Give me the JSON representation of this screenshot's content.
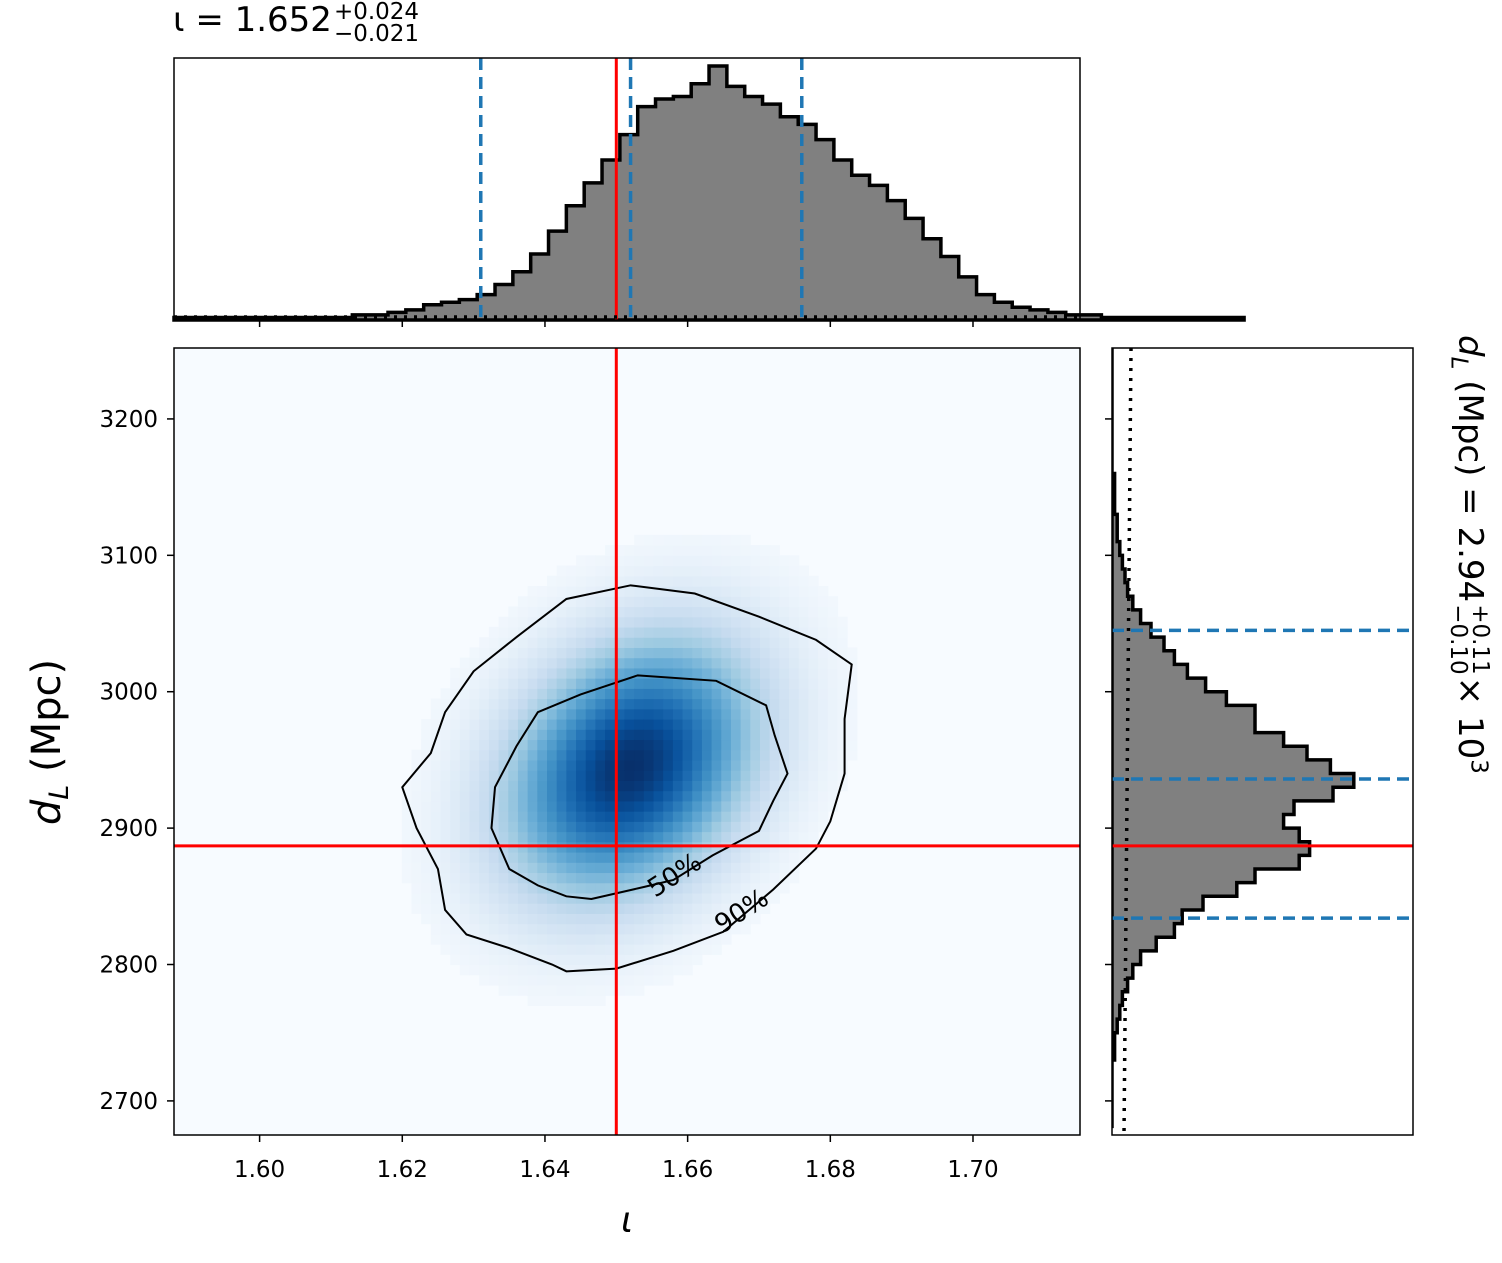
{
  "chart_data": {
    "type": "corner-plot",
    "marginal_x": {
      "type": "histogram",
      "title_symbol": "ι = 1.652",
      "title_plus": "+0.024",
      "title_minus": "−0.021",
      "bin_edges_start": 1.588,
      "bin_width": 0.0025,
      "counts": [
        0.01,
        0.01,
        0.01,
        0.01,
        0.01,
        0.01,
        0.01,
        0.01,
        0.01,
        0.01,
        0.02,
        0.02,
        0.03,
        0.04,
        0.06,
        0.07,
        0.08,
        0.1,
        0.14,
        0.19,
        0.26,
        0.35,
        0.45,
        0.54,
        0.63,
        0.73,
        0.84,
        0.87,
        0.88,
        0.93,
        1.0,
        0.92,
        0.88,
        0.85,
        0.8,
        0.77,
        0.71,
        0.63,
        0.57,
        0.53,
        0.47,
        0.4,
        0.32,
        0.25,
        0.17,
        0.1,
        0.07,
        0.05,
        0.04,
        0.03,
        0.02,
        0.02,
        0.01,
        0.01,
        0.01,
        0.01,
        0.01,
        0.01,
        0.01,
        0.01
      ],
      "quantiles": [
        1.631,
        1.652,
        1.676
      ],
      "truth": 1.65,
      "prior_level": 0.012
    },
    "marginal_y": {
      "type": "histogram",
      "title_label": "d",
      "title_sub": "L",
      "title_rest": " (Mpc) = 2.94",
      "title_plus": "+0.11",
      "title_minus": "−0.10",
      "title_exp": "× 10",
      "title_exp_power": "3",
      "bin_edges_start": 2680,
      "bin_width": 10,
      "counts": [
        0.0,
        0.0,
        0.0,
        0.0,
        0.0,
        0.01,
        0.01,
        0.02,
        0.03,
        0.04,
        0.06,
        0.08,
        0.11,
        0.17,
        0.24,
        0.27,
        0.35,
        0.48,
        0.55,
        0.72,
        0.76,
        0.72,
        0.66,
        0.7,
        0.85,
        0.93,
        0.84,
        0.75,
        0.66,
        0.55,
        0.55,
        0.44,
        0.36,
        0.29,
        0.24,
        0.2,
        0.15,
        0.11,
        0.08,
        0.06,
        0.05,
        0.04,
        0.03,
        0.02,
        0.02,
        0.01,
        0.01,
        0.01,
        0.0,
        0.0,
        0.0,
        0.0,
        0.0,
        0.0,
        0.0,
        0.0,
        0.0,
        0.0
      ],
      "quantiles": [
        2834,
        2936,
        3045
      ],
      "truth": 2887
    },
    "joint": {
      "type": "heatmap",
      "xlim": [
        1.588,
        1.715
      ],
      "ylim": [
        2675,
        3252
      ],
      "x_ticks": [
        "1.60",
        "1.62",
        "1.64",
        "1.66",
        "1.68",
        "1.70"
      ],
      "x_tick_values": [
        1.6,
        1.62,
        1.64,
        1.66,
        1.68,
        1.7
      ],
      "y_ticks": [
        "2700",
        "2800",
        "2900",
        "3000",
        "3100",
        "3200"
      ],
      "y_tick_values": [
        2700,
        2800,
        2900,
        3000,
        3100,
        3200
      ],
      "xlabel": "ι",
      "ylabel_d": "d",
      "ylabel_sub": "L",
      "ylabel_rest": " (Mpc)",
      "peak": [
        1.652,
        2945
      ],
      "contour_labels": [
        "50%",
        "90%"
      ],
      "contour_50": [
        [
          1.6465,
          2848
        ],
        [
          1.654,
          2857
        ],
        [
          1.658,
          2862
        ],
        [
          1.6635,
          2880
        ],
        [
          1.67,
          2898
        ],
        [
          1.672,
          2920
        ],
        [
          1.674,
          2940
        ],
        [
          1.6722,
          2968
        ],
        [
          1.671,
          2990
        ],
        [
          1.664,
          3008
        ],
        [
          1.653,
          3012
        ],
        [
          1.645,
          2998
        ],
        [
          1.639,
          2985
        ],
        [
          1.636,
          2960
        ],
        [
          1.633,
          2930
        ],
        [
          1.6325,
          2900
        ],
        [
          1.635,
          2870
        ],
        [
          1.639,
          2858
        ],
        [
          1.643,
          2850
        ]
      ],
      "contour_90": [
        [
          1.643,
          2795
        ],
        [
          1.65,
          2797
        ],
        [
          1.658,
          2810
        ],
        [
          1.665,
          2824
        ],
        [
          1.672,
          2855
        ],
        [
          1.678,
          2885
        ],
        [
          1.68,
          2905
        ],
        [
          1.682,
          2940
        ],
        [
          1.682,
          2980
        ],
        [
          1.683,
          3020
        ],
        [
          1.678,
          3038
        ],
        [
          1.67,
          3055
        ],
        [
          1.661,
          3072
        ],
        [
          1.652,
          3078
        ],
        [
          1.643,
          3068
        ],
        [
          1.636,
          3040
        ],
        [
          1.63,
          3015
        ],
        [
          1.626,
          2985
        ],
        [
          1.624,
          2955
        ],
        [
          1.62,
          2930
        ],
        [
          1.622,
          2900
        ],
        [
          1.625,
          2870
        ],
        [
          1.626,
          2840
        ],
        [
          1.629,
          2822
        ],
        [
          1.635,
          2812
        ],
        [
          1.641,
          2800
        ]
      ],
      "truth_x": 1.65,
      "truth_y": 2887
    },
    "colors": {
      "hist_fill": "#808080",
      "hist_edge": "#000000",
      "quantile_line": "#1f77b4",
      "truth_line": "#ff0000",
      "cmap_low": "#f7fbff",
      "cmap_high": "#08306b"
    }
  }
}
